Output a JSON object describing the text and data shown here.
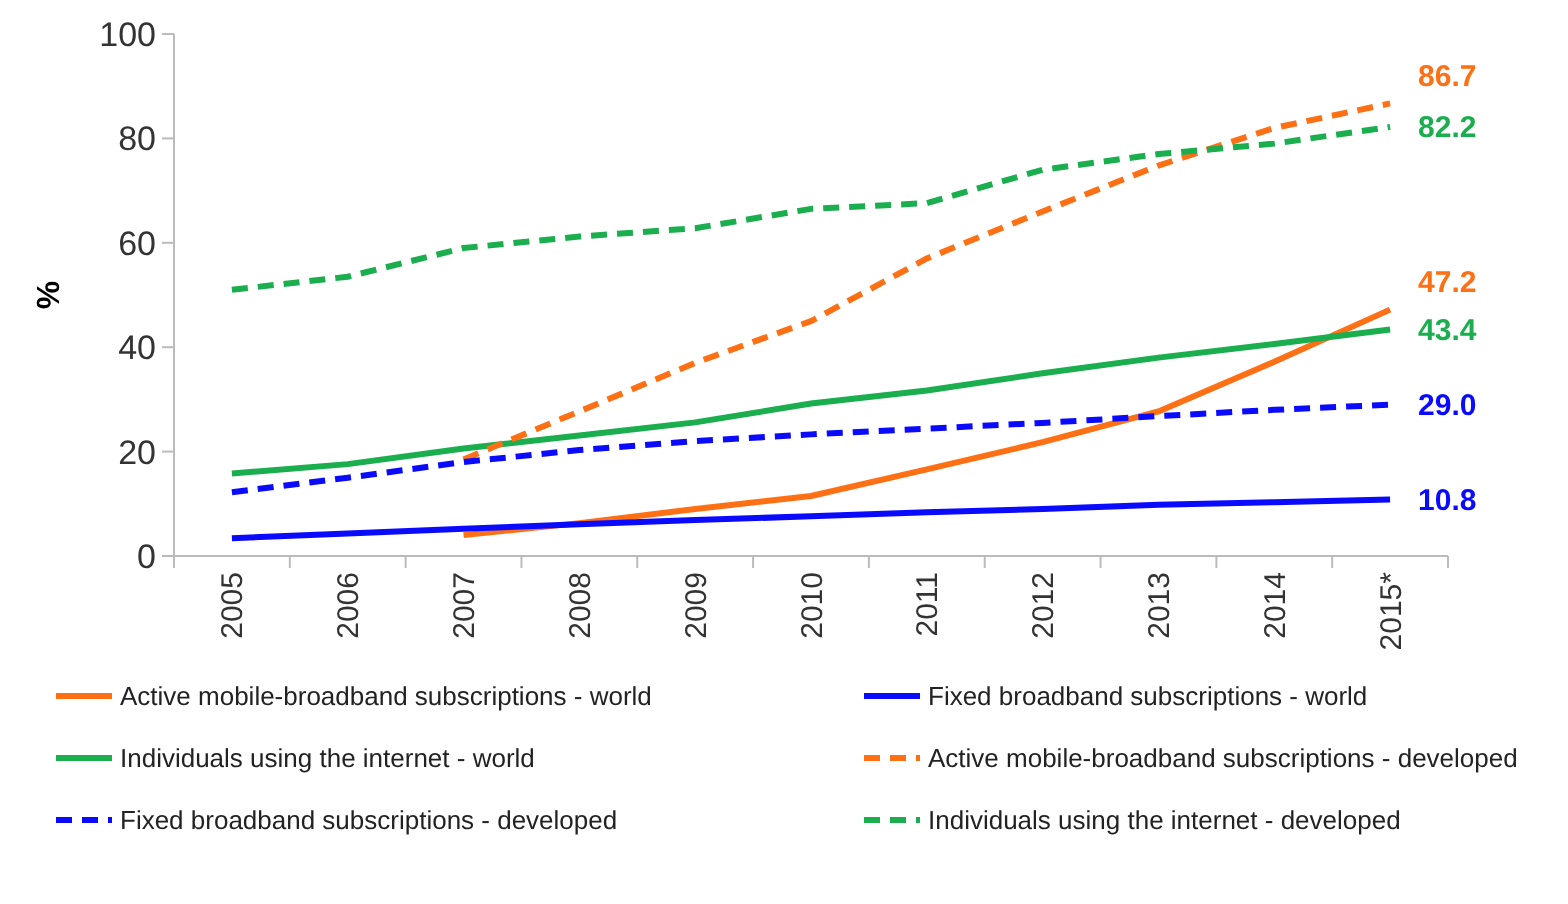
{
  "chart_data": {
    "type": "line",
    "ylabel": "%",
    "categories": [
      "2005",
      "2006",
      "2007",
      "2008",
      "2009",
      "2010",
      "2011",
      "2012",
      "2013",
      "2014",
      "2015*"
    ],
    "ylim": [
      0,
      100
    ],
    "yticks": [
      0,
      20,
      40,
      60,
      80,
      100
    ],
    "grid": false,
    "legend": "bottom",
    "series": [
      {
        "name": "Active mobile-broadband subscriptions - world",
        "color": "#ff6f14",
        "line_style": "solid",
        "values": [
          null,
          null,
          4.0,
          6.3,
          9.0,
          11.5,
          16.6,
          21.8,
          27.7,
          37.2,
          47.2
        ],
        "value_labels": [
          null,
          null,
          null,
          null,
          null,
          null,
          null,
          null,
          null,
          null,
          "47.2"
        ]
      },
      {
        "name": "Fixed broadband subscriptions - world",
        "color": "#0a0aff",
        "line_style": "solid",
        "values": [
          3.4,
          4.3,
          5.2,
          6.1,
          6.9,
          7.6,
          8.4,
          9.0,
          9.8,
          10.3,
          10.8
        ],
        "value_labels": [
          null,
          null,
          null,
          null,
          null,
          null,
          null,
          null,
          null,
          null,
          "10.8"
        ]
      },
      {
        "name": "Individuals using the internet - world",
        "color": "#1aae4e",
        "line_style": "solid",
        "values": [
          15.8,
          17.6,
          20.6,
          23.1,
          25.6,
          29.2,
          31.7,
          35.0,
          38.0,
          40.6,
          43.4
        ],
        "value_labels": [
          null,
          null,
          null,
          null,
          null,
          null,
          null,
          null,
          null,
          null,
          "43.4"
        ]
      },
      {
        "name": "Active mobile-broadband subscriptions - developed",
        "color": "#ff6f14",
        "line_style": "dashed",
        "values": [
          null,
          null,
          18.5,
          27.7,
          37.0,
          45.0,
          57.0,
          66.0,
          74.8,
          82.0,
          86.7
        ],
        "value_labels": [
          null,
          null,
          null,
          null,
          null,
          null,
          null,
          null,
          null,
          null,
          "86.7"
        ]
      },
      {
        "name": "Fixed broadband subscriptions - developed",
        "color": "#0a0aff",
        "line_style": "dashed",
        "values": [
          12.2,
          15.0,
          18.0,
          20.3,
          22.0,
          23.3,
          24.4,
          25.5,
          26.8,
          28.0,
          29.0
        ],
        "value_labels": [
          null,
          null,
          null,
          null,
          null,
          null,
          null,
          null,
          null,
          null,
          "29.0"
        ]
      },
      {
        "name": "Individuals using the internet - developed",
        "color": "#1aae4e",
        "line_style": "dashed",
        "values": [
          51.0,
          53.5,
          59.0,
          61.2,
          62.8,
          66.5,
          67.6,
          74.0,
          77.0,
          79.0,
          82.2
        ],
        "value_labels": [
          null,
          null,
          null,
          null,
          null,
          null,
          null,
          null,
          null,
          null,
          "82.2"
        ]
      }
    ]
  }
}
